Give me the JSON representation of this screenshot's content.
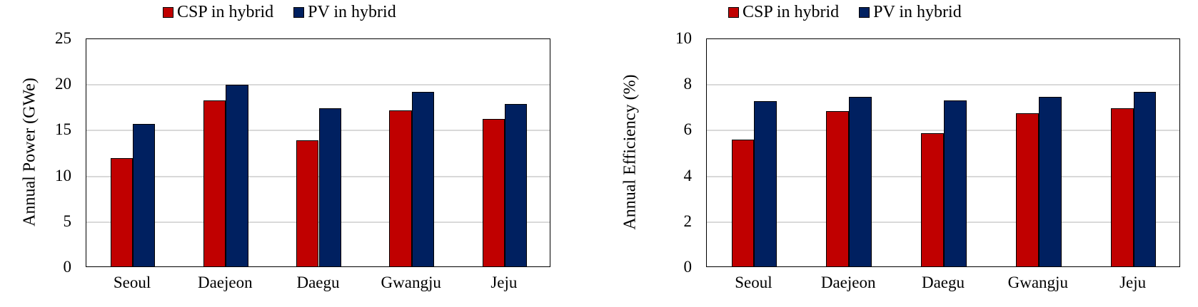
{
  "colors": {
    "csp": "#c00000",
    "pv": "#002060",
    "grid": "#d9d9d9"
  },
  "legend": [
    {
      "label": "CSP in hybrid",
      "color": "#c00000"
    },
    {
      "label": "PV in hybrid",
      "color": "#002060"
    }
  ],
  "chart_data": [
    {
      "type": "bar",
      "title": "",
      "xlabel": "",
      "ylabel": "Annual Power (GWe)",
      "ylim": [
        0,
        25
      ],
      "yticks": [
        0,
        5,
        10,
        15,
        20,
        25
      ],
      "grid": true,
      "legend_position": "top",
      "categories": [
        "Seoul",
        "Daejeon",
        "Daegu",
        "Gwangju",
        "Jeju"
      ],
      "series": [
        {
          "name": "CSP in hybrid",
          "values": [
            11.9,
            18.3,
            13.9,
            17.2,
            16.2
          ]
        },
        {
          "name": "PV in hybrid",
          "values": [
            15.7,
            20.0,
            17.4,
            19.2,
            17.9
          ]
        }
      ]
    },
    {
      "type": "bar",
      "title": "",
      "xlabel": "",
      "ylabel": "Annual Efficiency (%)",
      "ylim": [
        0,
        10
      ],
      "yticks": [
        0,
        2,
        4,
        6,
        8,
        10
      ],
      "grid": true,
      "legend_position": "top",
      "categories": [
        "Seoul",
        "Daejeon",
        "Daegu",
        "Gwangju",
        "Jeju"
      ],
      "series": [
        {
          "name": "CSP in hybrid",
          "values": [
            5.57,
            6.84,
            5.87,
            6.75,
            6.95
          ]
        },
        {
          "name": "PV in hybrid",
          "values": [
            7.26,
            7.47,
            7.32,
            7.47,
            7.67
          ]
        }
      ]
    }
  ]
}
